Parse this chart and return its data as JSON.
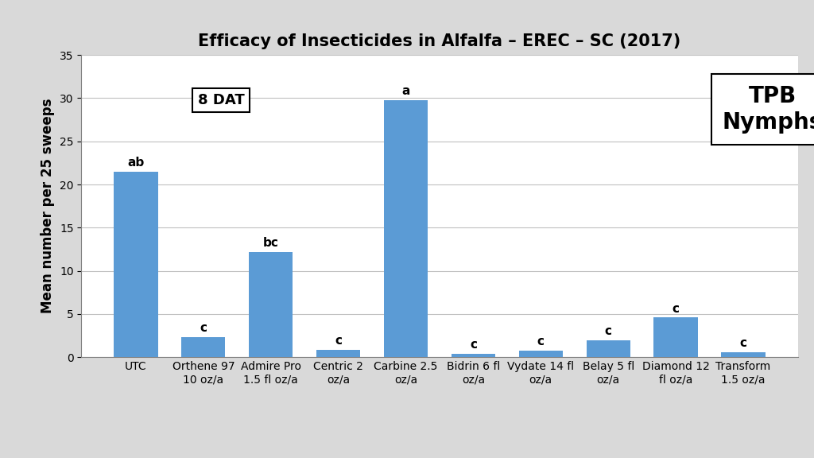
{
  "title": "Efficacy of Insecticides in Alfalfa – EREC – SC (2017)",
  "ylabel": "Mean number per 25 sweeps",
  "bar_color": "#5B9BD5",
  "fig_background_color": "#D9D9D9",
  "plot_background_color": "#FFFFFF",
  "categories": [
    "UTC",
    "Orthene 97\n10 oz/a",
    "Admire Pro\n1.5 fl oz/a",
    "Centric 2\noz/a",
    "Carbine 2.5\noz/a",
    "Bidrin 6 fl\noz/a",
    "Vydate 14 fl\noz/a",
    "Belay 5 fl\noz/a",
    "Diamond 12\nfl oz/a",
    "Transform\n1.5 oz/a"
  ],
  "values": [
    21.5,
    2.3,
    12.2,
    0.9,
    29.8,
    0.4,
    0.8,
    2.0,
    4.6,
    0.6
  ],
  "labels": [
    "ab",
    "c",
    "bc",
    "c",
    "a",
    "c",
    "c",
    "c",
    "c",
    "c"
  ],
  "ylim": [
    0,
    35
  ],
  "yticks": [
    0,
    5,
    10,
    15,
    20,
    25,
    30,
    35
  ],
  "annotation_8dat": "8 DAT",
  "annotation_tpb": "TPB\nNymphs",
  "title_fontsize": 15,
  "label_fontsize": 12,
  "tick_fontsize": 10,
  "bar_label_fontsize": 11,
  "dat_fontsize": 13,
  "tpb_fontsize": 20
}
